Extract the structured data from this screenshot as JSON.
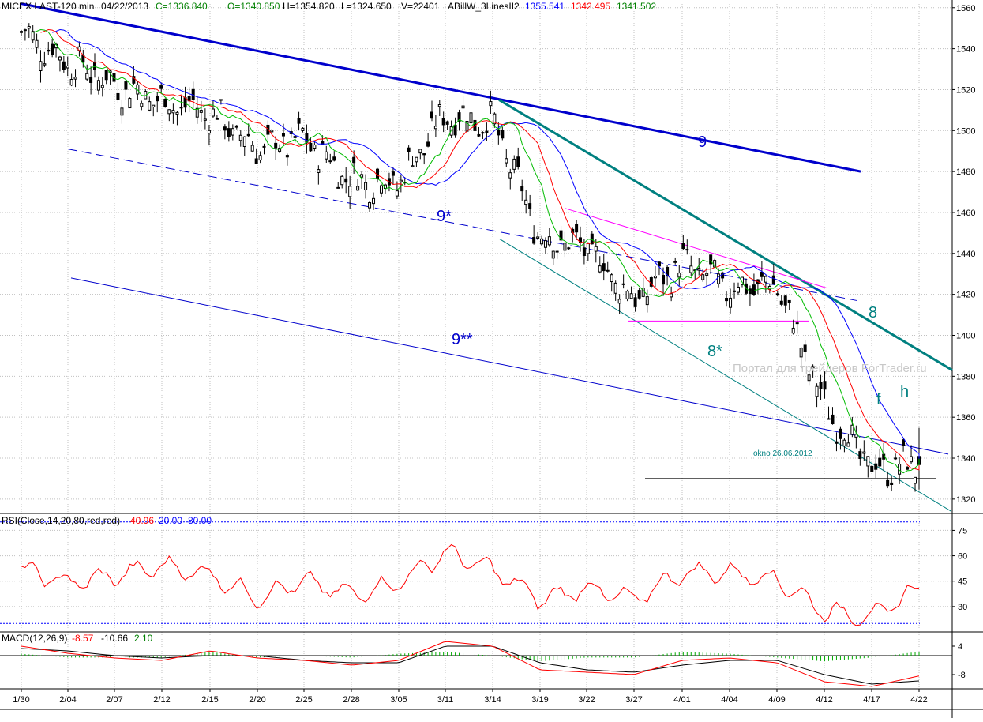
{
  "header": {
    "symbol": "MICEX LAST-120 min",
    "date": "04/22/2013",
    "close": "C=1336.840",
    "open": "O=1340.850",
    "high": "H=1354.820",
    "low": "L=1324.650",
    "volume": "V=22401",
    "indicator_name": "ABillW_3LinesII2",
    "line_blue": "1355.541",
    "line_red": "1342.495",
    "line_green": "1341.502"
  },
  "watermark": "Портал для трейдеров   ForTrader.ru",
  "price_axis": {
    "ticks": [
      "1560",
      "1540",
      "1520",
      "1500",
      "1480",
      "1460",
      "1440",
      "1420",
      "1400",
      "1380",
      "1360",
      "1340",
      "1320"
    ],
    "range": [
      1313,
      1563
    ]
  },
  "date_axis": {
    "labels": [
      "1/30",
      "2/04",
      "2/07",
      "2/12",
      "2/15",
      "2/20",
      "2/25",
      "2/28",
      "3/05",
      "3/11",
      "3/14",
      "3/19",
      "3/22",
      "3/27",
      "4/01",
      "4/04",
      "4/09",
      "4/12",
      "4/17",
      "4/22"
    ]
  },
  "annotations": {
    "wave_9": "9",
    "wave_9_star": "9*",
    "wave_9_star_star": "9**",
    "wave_8": "8",
    "wave_8_star": "8*",
    "wave_f": "f",
    "wave_h": "h",
    "window_label": "okno 26.06.2012"
  },
  "rsi": {
    "title": "RSI(Close,14,20,80,red,red)",
    "value": "40.96",
    "level_low": "20.00",
    "level_high": "80.00",
    "ticks": [
      "75",
      "60",
      "45",
      "30"
    ],
    "range": [
      15,
      85
    ]
  },
  "macd": {
    "title": "MACD(12,26,9)",
    "v1": "-8.57",
    "v2": "-10.66",
    "v3": "2.10",
    "ticks": [
      "4",
      "-8"
    ],
    "range": [
      -14,
      10
    ]
  },
  "colors": {
    "blue_line": "#0000ff",
    "red_line": "#ff0000",
    "green_line": "#00bb00",
    "trend_teal": "#008080",
    "magenta": "#ff00ff",
    "grid": "#c0c0c0",
    "header_blue": "#0000ff",
    "header_red": "#ff0000",
    "header_green": "#008000"
  },
  "chart_data": [
    {
      "type": "candlestick",
      "title": "MICEX LAST-120 min",
      "ylim": [
        1313,
        1563
      ],
      "x": [
        "1/30",
        "2/04",
        "2/07",
        "2/12",
        "2/15",
        "2/20",
        "2/25",
        "2/28",
        "3/05",
        "3/11",
        "3/14",
        "3/19",
        "3/22",
        "3/27",
        "4/01",
        "4/04",
        "4/09",
        "4/12",
        "4/17",
        "4/22"
      ],
      "close_by_date": [
        1548,
        1534,
        1523,
        1514,
        1509,
        1491,
        1496,
        1476,
        1475,
        1508,
        1504,
        1448,
        1443,
        1417,
        1435,
        1423,
        1425,
        1366,
        1335,
        1337
      ],
      "last_bar": {
        "open": 1340.85,
        "high": 1354.82,
        "low": 1324.65,
        "close": 1336.84
      },
      "indicator_series": [
        {
          "name": "ABillW_3LinesII2",
          "last": 1355.541
        },
        {
          "name": "ABillW_3LinesII2",
          "last": 1342.495
        },
        {
          "name": "ABillW_3LinesII2",
          "last": 1341.502
        }
      ],
      "trend_lines": [
        {
          "label": "9",
          "from": [
            "1/30",
            1562
          ],
          "to": [
            "3/14",
            1515
          ]
        },
        {
          "label": "9*",
          "from": [
            "2/04",
            1491
          ],
          "to": [
            "4/12",
            1418
          ]
        },
        {
          "label": "9**",
          "from": [
            "2/04",
            1428
          ],
          "to": [
            "4/22",
            1342
          ]
        },
        {
          "label": "8",
          "from": [
            "3/14",
            1515
          ],
          "to": [
            "4/22",
            1383
          ]
        },
        {
          "label": "8*",
          "from": [
            "3/14",
            1447
          ],
          "to": [
            "4/22",
            1314
          ]
        },
        {
          "label": "okno 26.06.2012",
          "value": 1330
        }
      ]
    },
    {
      "type": "line",
      "title": "RSI(Close,14,20,80,red,red)",
      "ylim": [
        15,
        85
      ],
      "levels": [
        20,
        80
      ],
      "x": [
        "1/30",
        "2/04",
        "2/07",
        "2/12",
        "2/15",
        "2/20",
        "2/25",
        "2/28",
        "3/05",
        "3/11",
        "3/14",
        "3/19",
        "3/22",
        "3/27",
        "4/01",
        "4/04",
        "4/09",
        "4/12",
        "4/17",
        "4/22"
      ],
      "values": [
        52,
        44,
        48,
        54,
        49,
        35,
        45,
        37,
        44,
        62,
        52,
        34,
        41,
        34,
        50,
        50,
        46,
        27,
        24,
        40.96
      ]
    },
    {
      "type": "line",
      "title": "MACD(12,26,9)",
      "ylim": [
        -14,
        10
      ],
      "x": [
        "1/30",
        "2/04",
        "2/07",
        "2/12",
        "2/15",
        "2/20",
        "2/25",
        "2/28",
        "3/05",
        "3/11",
        "3/14",
        "3/19",
        "3/22",
        "3/27",
        "4/01",
        "4/04",
        "4/09",
        "4/12",
        "4/17",
        "4/22"
      ],
      "series": [
        {
          "values": [
            4,
            1,
            -1,
            -2,
            2,
            -1,
            -2,
            -4,
            -2,
            6,
            4,
            -6,
            -7,
            -8,
            -2,
            -1,
            -3,
            -11,
            -13,
            -8.57
          ]
        },
        {
          "values": [
            3,
            2,
            0,
            -1,
            0,
            0,
            -2,
            -3,
            -3,
            4,
            4,
            -3,
            -6,
            -7,
            -4,
            -2,
            -2,
            -8,
            -12,
            -10.66
          ]
        }
      ]
    }
  ]
}
